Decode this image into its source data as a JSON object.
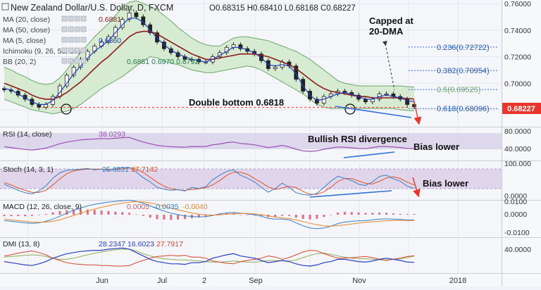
{
  "colors": {
    "price": "#222222",
    "sma20": "#8b1a1a",
    "sma5": "#1f3fbf",
    "band_fill": "#cfe9c8",
    "band_line": "#6aa86a",
    "rsi_line": "#9b4fb5",
    "rsi_band": "#d6cde6",
    "stoch_k": "#3b7fc4",
    "stoch_d": "#e0532a",
    "stoch_band": "#d9c9e6",
    "macd_line": "#3b7fc4",
    "macd_signal": "#e8862a",
    "macd_hist": "#e0536a",
    "dmi_plus": "#2a3fbf",
    "dmi_minus": "#d7452b",
    "dmi_adx": "#8fb05a",
    "last_price_tag": "#e8362c",
    "annotation_line": "#2f6fd6",
    "arrow": "#e8362c",
    "dashed": "#e8362c"
  },
  "header": {
    "title": "New Zealand Dollar/U.S. Dollar, D, FXCM",
    "ohlc": "O0.68315  H0.68410  L0.68168  C0.68227",
    "indicators": [
      {
        "label": "MA (20, close)",
        "value": "0.6881",
        "color": "#8b1a1a"
      },
      {
        "label": "MA (50, close)",
        "value": "",
        "color": "#444444"
      },
      {
        "label": "MA (5, close)",
        "value": "0.6860",
        "color": "#1f3fbf"
      },
      {
        "label": "Ichimoku (9, 26, 52, 26)",
        "value": "",
        "color": "#444444"
      },
      {
        "label": "BB (20, 2)",
        "value": "0.6881  0.6970  0.6792",
        "color": "#1c7a4a"
      }
    ]
  },
  "annotations": {
    "capped": "Capped at\n20-DMA",
    "double_bottom": "Double bottom 0.6818",
    "bullish_rsi": "Bullish RSI  divergence",
    "bias_lower_rsi": "Bias lower",
    "bias_lower_stoch": "Bias lower"
  },
  "fib_labels": [
    "0.236(0.72722)",
    "0.382(0.70954)",
    "0.5(0.69525)",
    "0.618(0.68096)"
  ],
  "panes": {
    "rsi": {
      "label": "RSI (14, close)",
      "value": "38.0293"
    },
    "stoch": {
      "label": "Stoch (14, 3, 1)",
      "value_k": "25.6831",
      "value_d": "37.7142"
    },
    "macd": {
      "label": "MACD (12, 26, close, 9)",
      "value_1": "0.0005",
      "value_2": "-0.0035",
      "value_3": "-0.0040"
    },
    "dmi": {
      "label": "DMI (13, 8)",
      "value_1": "28.2347",
      "value_2": "16.6023",
      "value_3": "27.7917"
    }
  },
  "axes": {
    "price_ticks": [
      "0.76000",
      "0.74000",
      "0.72000",
      "0.70000",
      "0.68000"
    ],
    "last_price": "0.68227",
    "rsi_ticks": [
      "80.0000",
      "40.0000"
    ],
    "stoch_ticks": [
      "100.000",
      "0.0000"
    ],
    "macd_ticks": [
      "0.0100",
      "0.0000",
      "-0.0100"
    ],
    "dmi_ticks": [
      "40.0000"
    ],
    "x_ticks": [
      "Jun",
      "Jul",
      "2",
      "Sep",
      "Nov",
      "2018"
    ]
  },
  "chart_data": {
    "type": "line",
    "series": [
      {
        "name": "NZD/USD",
        "values": [
          0.695,
          0.694,
          0.691,
          0.688,
          0.684,
          0.682,
          0.684,
          0.69,
          0.698,
          0.706,
          0.712,
          0.718,
          0.724,
          0.728,
          0.731,
          0.735,
          0.742,
          0.748,
          0.753,
          0.75,
          0.744,
          0.738,
          0.731,
          0.726,
          0.723,
          0.72,
          0.718,
          0.718,
          0.716,
          0.716,
          0.72,
          0.723,
          0.727,
          0.729,
          0.726,
          0.724,
          0.722,
          0.717,
          0.711,
          0.712,
          0.716,
          0.713,
          0.703,
          0.694,
          0.688,
          0.685,
          0.69,
          0.692,
          0.694,
          0.693,
          0.691,
          0.688,
          0.686,
          0.688,
          0.692,
          0.692,
          0.69,
          0.688,
          0.684,
          0.6823
        ]
      },
      {
        "name": "MA (20, close)",
        "values": [
          0.7,
          0.698,
          0.696,
          0.694,
          0.691,
          0.689,
          0.688,
          0.688,
          0.69,
          0.693,
          0.697,
          0.701,
          0.706,
          0.711,
          0.716,
          0.72,
          0.725,
          0.73,
          0.735,
          0.738,
          0.739,
          0.739,
          0.737,
          0.734,
          0.731,
          0.728,
          0.725,
          0.722,
          0.72,
          0.718,
          0.718,
          0.719,
          0.72,
          0.721,
          0.722,
          0.722,
          0.722,
          0.721,
          0.72,
          0.718,
          0.716,
          0.714,
          0.711,
          0.707,
          0.703,
          0.699,
          0.696,
          0.694,
          0.693,
          0.692,
          0.691,
          0.69,
          0.69,
          0.689,
          0.689,
          0.689,
          0.689,
          0.689,
          0.6885,
          0.6881
        ]
      },
      {
        "name": "MA (5, close)",
        "values": [
          0.696,
          0.695,
          0.692,
          0.689,
          0.686,
          0.684,
          0.684,
          0.687,
          0.693,
          0.7,
          0.707,
          0.713,
          0.719,
          0.724,
          0.728,
          0.732,
          0.738,
          0.744,
          0.749,
          0.749,
          0.746,
          0.74,
          0.734,
          0.729,
          0.725,
          0.722,
          0.72,
          0.718,
          0.717,
          0.716,
          0.718,
          0.721,
          0.724,
          0.727,
          0.727,
          0.725,
          0.723,
          0.719,
          0.714,
          0.713,
          0.714,
          0.713,
          0.707,
          0.698,
          0.691,
          0.687,
          0.688,
          0.69,
          0.692,
          0.693,
          0.692,
          0.69,
          0.688,
          0.688,
          0.69,
          0.691,
          0.69,
          0.689,
          0.687,
          0.686
        ]
      },
      {
        "name": "BB upper",
        "values": [
          0.712,
          0.71,
          0.707,
          0.705,
          0.702,
          0.7,
          0.699,
          0.7,
          0.704,
          0.71,
          0.717,
          0.723,
          0.729,
          0.735,
          0.74,
          0.745,
          0.751,
          0.757,
          0.761,
          0.762,
          0.76,
          0.758,
          0.755,
          0.751,
          0.747,
          0.742,
          0.738,
          0.734,
          0.731,
          0.729,
          0.728,
          0.728,
          0.731,
          0.734,
          0.735,
          0.735,
          0.734,
          0.733,
          0.732,
          0.73,
          0.728,
          0.726,
          0.724,
          0.721,
          0.718,
          0.714,
          0.71,
          0.706,
          0.702,
          0.7,
          0.699,
          0.698,
          0.698,
          0.698,
          0.698,
          0.698,
          0.698,
          0.698,
          0.6975,
          0.697
        ]
      },
      {
        "name": "BB lower",
        "values": [
          0.688,
          0.686,
          0.684,
          0.682,
          0.68,
          0.679,
          0.678,
          0.677,
          0.678,
          0.679,
          0.681,
          0.684,
          0.688,
          0.692,
          0.696,
          0.699,
          0.702,
          0.705,
          0.709,
          0.713,
          0.717,
          0.72,
          0.719,
          0.717,
          0.715,
          0.714,
          0.712,
          0.71,
          0.709,
          0.708,
          0.708,
          0.709,
          0.71,
          0.711,
          0.712,
          0.713,
          0.712,
          0.71,
          0.707,
          0.704,
          0.701,
          0.698,
          0.695,
          0.692,
          0.688,
          0.684,
          0.682,
          0.681,
          0.681,
          0.681,
          0.681,
          0.681,
          0.681,
          0.681,
          0.681,
          0.681,
          0.681,
          0.68,
          0.6795,
          0.6792
        ]
      }
    ],
    "fib_levels": [
      0.72722,
      0.70954,
      0.69525,
      0.68096
    ],
    "support_level": 0.6818,
    "rsi": [
      45,
      42,
      38,
      35,
      33,
      36,
      40,
      48,
      56,
      62,
      66,
      70,
      72,
      73,
      75,
      74,
      76,
      78,
      79,
      70,
      62,
      56,
      50,
      47,
      45,
      44,
      43,
      46,
      45,
      46,
      52,
      55,
      60,
      62,
      57,
      55,
      52,
      47,
      42,
      45,
      50,
      44,
      36,
      30,
      28,
      30,
      36,
      40,
      44,
      43,
      41,
      39,
      38,
      42,
      46,
      46,
      44,
      42,
      39,
      38.03
    ],
    "stoch_k": [
      40,
      30,
      20,
      12,
      8,
      18,
      35,
      60,
      78,
      86,
      88,
      90,
      92,
      88,
      90,
      86,
      92,
      95,
      96,
      80,
      62,
      48,
      30,
      24,
      20,
      22,
      18,
      30,
      26,
      32,
      55,
      70,
      82,
      88,
      70,
      60,
      48,
      30,
      14,
      26,
      44,
      30,
      12,
      6,
      4,
      10,
      30,
      50,
      66,
      60,
      52,
      40,
      36,
      48,
      66,
      70,
      58,
      50,
      34,
      25.68
    ],
    "stoch_d": [
      45,
      38,
      28,
      20,
      13,
      13,
      20,
      38,
      58,
      75,
      84,
      88,
      90,
      90,
      90,
      88,
      89,
      91,
      94,
      90,
      79,
      63,
      47,
      34,
      25,
      22,
      20,
      23,
      25,
      29,
      38,
      52,
      69,
      80,
      80,
      73,
      59,
      46,
      31,
      23,
      28,
      33,
      29,
      16,
      7,
      7,
      15,
      30,
      49,
      59,
      59,
      51,
      43,
      41,
      50,
      61,
      65,
      59,
      47,
      37.71
    ],
    "macd": [
      -0.004,
      -0.0045,
      -0.005,
      -0.0055,
      -0.0058,
      -0.0055,
      -0.0045,
      -0.003,
      -0.001,
      0.001,
      0.003,
      0.0045,
      0.006,
      0.007,
      0.0078,
      0.0085,
      0.009,
      0.0095,
      0.0098,
      0.009,
      0.0078,
      0.006,
      0.004,
      0.0025,
      0.001,
      0.0,
      -0.0008,
      -0.0012,
      -0.0015,
      -0.0014,
      -0.0005,
      0.0005,
      0.0012,
      0.0015,
      0.001,
      0.0005,
      0.0,
      -0.001,
      -0.0025,
      -0.003,
      -0.003,
      -0.0035,
      -0.0055,
      -0.0075,
      -0.009,
      -0.0095,
      -0.009,
      -0.0078,
      -0.006,
      -0.005,
      -0.0045,
      -0.0042,
      -0.004,
      -0.0035,
      -0.003,
      -0.0028,
      -0.003,
      -0.0032,
      -0.0035,
      -0.0035
    ],
    "macd_signal": [
      -0.003,
      -0.0035,
      -0.004,
      -0.0045,
      -0.005,
      -0.0052,
      -0.005,
      -0.0045,
      -0.0035,
      -0.002,
      -0.0005,
      0.001,
      0.0025,
      0.0038,
      0.005,
      0.006,
      0.007,
      0.0078,
      0.0085,
      0.0088,
      0.0086,
      0.008,
      0.007,
      0.0058,
      0.0045,
      0.0033,
      0.0022,
      0.0012,
      0.0004,
      -0.0001,
      -0.0003,
      -0.0001,
      0.0003,
      0.0007,
      0.0009,
      0.0008,
      0.0005,
      0.0,
      -0.0008,
      -0.0016,
      -0.0022,
      -0.0027,
      -0.0035,
      -0.0046,
      -0.0058,
      -0.0068,
      -0.0075,
      -0.0077,
      -0.0074,
      -0.0069,
      -0.0063,
      -0.0057,
      -0.0052,
      -0.0048,
      -0.0044,
      -0.0041,
      -0.0039,
      -0.0038,
      -0.004,
      -0.004
    ],
    "dmi_plus": [
      18,
      16,
      14,
      12,
      11,
      14,
      18,
      24,
      28,
      32,
      34,
      36,
      37,
      38,
      38,
      40,
      41,
      42,
      40,
      34,
      28,
      22,
      18,
      16,
      14,
      14,
      13,
      16,
      16,
      18,
      24,
      27,
      30,
      32,
      28,
      26,
      24,
      20,
      16,
      18,
      20,
      18,
      14,
      11,
      10,
      12,
      16,
      18,
      22,
      22,
      20,
      18,
      17,
      19,
      22,
      24,
      22,
      20,
      17,
      16.6
    ],
    "dmi_minus": [
      28,
      30,
      33,
      35,
      37,
      34,
      30,
      24,
      20,
      16,
      14,
      13,
      12,
      12,
      11,
      11,
      10,
      10,
      11,
      16,
      20,
      24,
      27,
      28,
      29,
      28,
      29,
      26,
      26,
      24,
      19,
      17,
      15,
      14,
      18,
      20,
      22,
      24,
      28,
      26,
      22,
      25,
      30,
      35,
      38,
      37,
      32,
      28,
      24,
      24,
      25,
      26,
      27,
      25,
      22,
      20,
      22,
      24,
      27,
      28.23
    ],
    "dmi_adx": [
      26,
      27,
      28,
      29,
      30,
      29,
      27,
      24,
      22,
      22,
      24,
      27,
      30,
      33,
      35,
      37,
      39,
      40,
      40,
      37,
      32,
      28,
      25,
      23,
      22,
      21,
      21,
      20,
      19,
      18,
      17,
      17,
      18,
      19,
      18,
      17,
      17,
      18,
      20,
      20,
      19,
      19,
      21,
      25,
      29,
      32,
      33,
      31,
      28,
      26,
      24,
      23,
      23,
      22,
      21,
      21,
      22,
      23,
      25,
      27.79
    ]
  }
}
